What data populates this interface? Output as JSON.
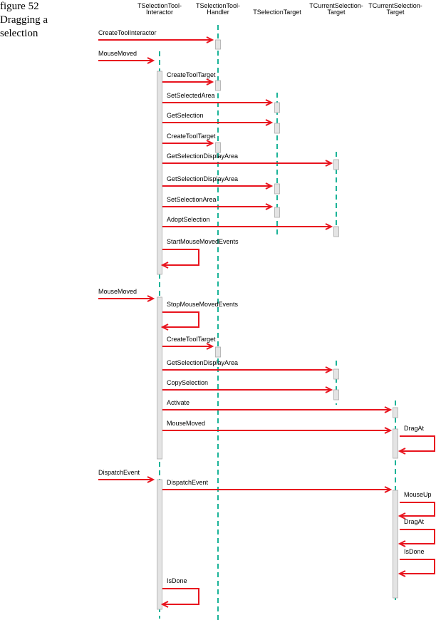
{
  "figure": {
    "number": "figure 52",
    "caption": "Dragging a selection"
  },
  "participants": [
    {
      "lines": [
        "TSelectionTool-",
        "Interactor"
      ]
    },
    {
      "lines": [
        "TSelectionTool-",
        "Handler"
      ]
    },
    {
      "lines": [
        "TSelectionTarget"
      ]
    },
    {
      "lines": [
        "TCurrentSelection-",
        "Target"
      ]
    },
    {
      "lines": [
        "TCurrentSelection-",
        "Target"
      ]
    }
  ],
  "messages": [
    "CreateToolInteractor",
    "MouseMoved",
    "CreateToolTarget",
    "SetSelectedArea",
    "GetSelection",
    "CreateToolTarget",
    "GetSelectionDisplayArea",
    "GetSelectionDisplayArea",
    "SetSelectionArea",
    "AdoptSelection",
    "StartMouseMovedEvents",
    "MouseMoved",
    "StopMouseMovedEvents",
    "CreateToolTarget",
    "GetSelectionDisplayArea",
    "CopySelection",
    "Activate",
    "MouseMoved",
    "DragAt",
    "DispatchEvent",
    "DispatchEvent",
    "MouseUp",
    "DragAt",
    "IsDone",
    "IsDone"
  ]
}
